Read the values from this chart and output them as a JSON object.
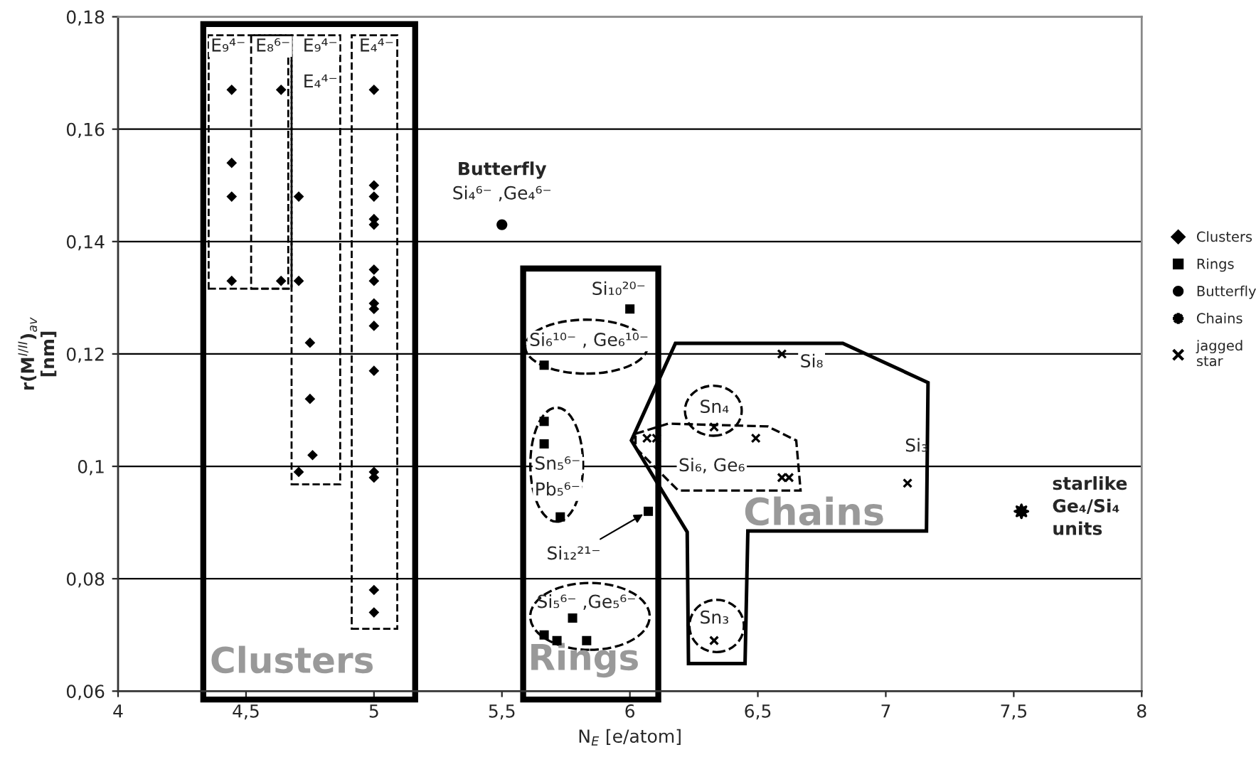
{
  "chart_data": {
    "type": "scatter",
    "xlabel": "N$_{E}$ [e/atom]",
    "ylabel": "r(M$^{I/II}$)$_{av}$\n[nm]",
    "xlim": [
      4,
      8
    ],
    "xticks": [
      4,
      {
        "value": 4.5,
        "label": "4,5"
      },
      5,
      {
        "value": 5.5,
        "label": "5,5"
      },
      6,
      {
        "value": 6.5,
        "label": "6,5"
      },
      7,
      {
        "value": 7.5,
        "label": "7,5"
      },
      8
    ],
    "ylim": [
      0.06,
      0.18
    ],
    "yticks": [
      {
        "value": 0.06,
        "label": "0,06"
      },
      {
        "value": 0.08,
        "label": "0,08"
      },
      {
        "value": 0.1,
        "label": "0,1"
      },
      {
        "value": 0.12,
        "label": "0,12"
      },
      {
        "value": 0.14,
        "label": "0,14"
      },
      {
        "value": 0.16,
        "label": "0,16"
      },
      {
        "value": 0.18,
        "label": "0,18"
      }
    ],
    "grid": "y",
    "legend": "right",
    "series": [
      {
        "name": "Clusters",
        "color": "#000000",
        "marker": "diamond",
        "x": [
          4.444,
          4.444,
          4.444,
          4.444,
          4.637,
          4.637,
          4.706,
          4.706,
          4.706,
          4.75,
          4.75,
          4.76,
          5.0,
          5.0,
          5.0,
          5.0,
          5.0,
          5.0,
          5.0,
          5.0,
          5.0,
          5.0,
          5.0,
          5.0,
          5.0,
          5.0,
          5.0
        ],
        "values": [
          0.167,
          0.154,
          0.148,
          0.133,
          0.167,
          0.133,
          0.148,
          0.133,
          0.099,
          0.122,
          0.112,
          0.102,
          0.167,
          0.15,
          0.148,
          0.144,
          0.143,
          0.135,
          0.133,
          0.129,
          0.128,
          0.125,
          0.117,
          0.099,
          0.098,
          0.078,
          0.074
        ]
      },
      {
        "name": "Rings",
        "color": "#000000",
        "marker": "square",
        "x": [
          6.0,
          5.665,
          5.665,
          5.665,
          5.728,
          6.072,
          5.665,
          5.776,
          5.715,
          5.831
        ],
        "values": [
          0.128,
          0.118,
          0.108,
          0.104,
          0.091,
          0.092,
          0.07,
          0.073,
          0.069,
          0.069
        ]
      },
      {
        "name": "Butterfly",
        "color": "#000000",
        "marker": "circle",
        "x": [
          5.5
        ],
        "values": [
          0.143
        ]
      },
      {
        "name": "Chains",
        "color": "#000000",
        "marker": "star",
        "x": [
          7.53
        ],
        "values": [
          0.092
        ]
      },
      {
        "name": "jagged\nstar",
        "color": "#000000",
        "marker": "cross",
        "x": [
          6.594,
          6.329,
          6.492,
          6.067,
          6.104,
          6.594,
          6.622,
          7.085,
          6.329
        ],
        "values": [
          0.12,
          0.107,
          0.105,
          0.105,
          0.105,
          0.098,
          0.098,
          0.097,
          0.069
        ]
      }
    ],
    "annotations": [
      "E₉⁴⁻",
      "E₈⁶⁻",
      "E₉⁴⁻",
      "E₄⁴⁻",
      "E₄⁴⁻",
      "Butterfly",
      "Si₄⁶⁻ ,Ge₄⁶⁻",
      "Si₁₀²⁰⁻",
      "Si₆¹⁰⁻ , Ge₆¹⁰⁻",
      "Sn₅⁶⁻",
      "Pb₅⁶⁻",
      {
        "text": "Si₁₂²¹⁻",
        "x": 6.072,
        "y": 0.092
      },
      "Si₅⁶⁻ ,Ge₅⁶⁻",
      "Sn₄",
      "Si₆, Ge₆",
      "Si₈",
      "Si₃",
      "Sn₃",
      "starlike\nGe₄/Si₄\nunits",
      "Clusters",
      "Rings",
      "Chains"
    ]
  }
}
